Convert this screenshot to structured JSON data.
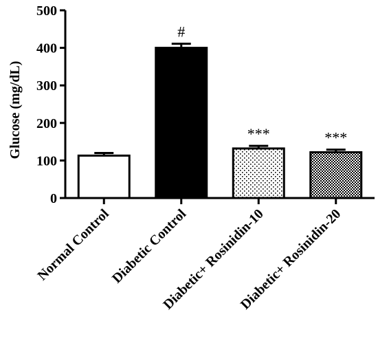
{
  "chart_data": {
    "type": "bar",
    "title": "",
    "xlabel": "",
    "ylabel": "Glucose (mg/dL)",
    "ylim": [
      0,
      500
    ],
    "yticks": [
      0,
      100,
      200,
      300,
      400,
      500
    ],
    "categories": [
      "Normal Control",
      "Diabetic Control",
      "Diabetic+ Rosinidin-10",
      "Diabetic+ Rosinidin-20"
    ],
    "values": [
      113,
      400,
      132,
      122
    ],
    "errors": [
      7,
      11,
      7,
      7
    ],
    "annotations": [
      "",
      "#",
      "***",
      "***"
    ],
    "fills": [
      "white",
      "black",
      "sparse-dots",
      "dense-checker"
    ],
    "grid": false,
    "legend": "none"
  }
}
